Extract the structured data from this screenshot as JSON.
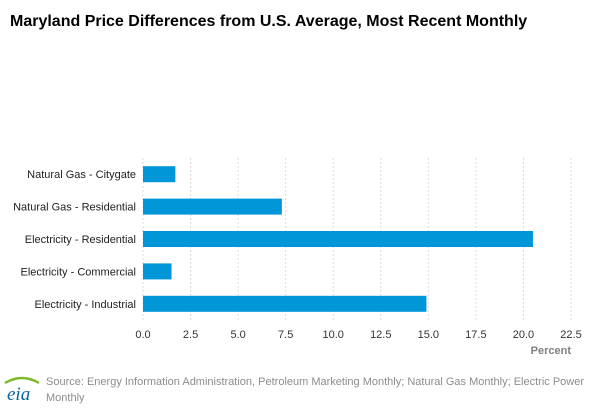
{
  "title": "Maryland Price Differences from U.S. Average, Most Recent Monthly",
  "source": "Source: Energy Information Administration, Petroleum Marketing Monthly; Natural Gas Monthly; Electric Power Monthly",
  "logo_text": "eia",
  "colors": {
    "bar": "#0096d7",
    "grid": "#dadada",
    "logo_blue": "#0a64a0",
    "logo_green": "#79b928"
  },
  "chart_data": {
    "type": "bar",
    "orientation": "horizontal",
    "categories": [
      "Natural Gas - Citygate",
      "Natural Gas - Residential",
      "Electricity - Residential",
      "Electricity - Commercial",
      "Electricity - Industrial"
    ],
    "values": [
      1.7,
      7.3,
      20.5,
      1.5,
      14.9
    ],
    "xlabel": "Percent",
    "xlim": [
      0,
      22.5
    ],
    "xticks": [
      "0.0",
      "2.5",
      "5.0",
      "7.5",
      "10.0",
      "12.5",
      "15.0",
      "17.5",
      "20.0",
      "22.5"
    ],
    "grid": true,
    "legend": "none"
  }
}
